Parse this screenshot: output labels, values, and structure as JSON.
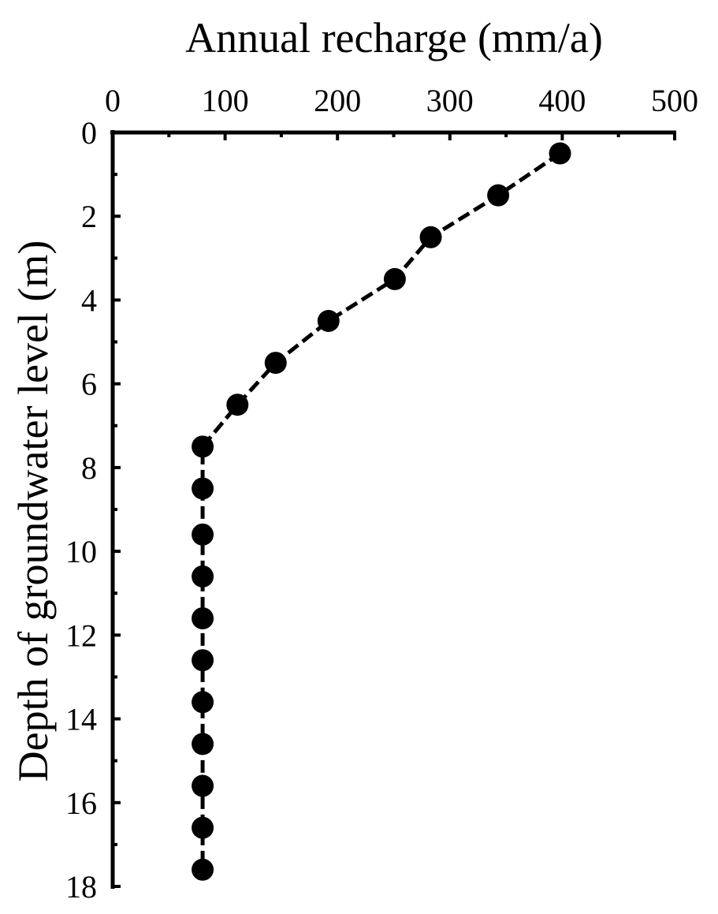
{
  "chart_data": {
    "type": "scatter",
    "xlabel": "Annual recharge (mm/a)",
    "ylabel": "Depth of groundwater level (m)",
    "xlim": [
      0,
      500
    ],
    "ylim": [
      0,
      18
    ],
    "x_axis_position": "top",
    "y_axis_inverted": true,
    "grid": false,
    "x_ticks": [
      0,
      100,
      200,
      300,
      400,
      500
    ],
    "y_ticks": [
      0,
      2,
      4,
      6,
      8,
      10,
      12,
      14,
      16,
      18
    ],
    "x_tick_labels": [
      "0",
      "100",
      "200",
      "300",
      "400",
      "500"
    ],
    "y_tick_labels": [
      "0",
      "2",
      "4",
      "6",
      "8",
      "10",
      "12",
      "14",
      "16",
      "18"
    ],
    "x_minor_step": 50,
    "y_minor_step": 1,
    "line_style": "dashed",
    "marker": "filled-circle",
    "color": "#000000",
    "series": [
      {
        "points": [
          {
            "x": 398,
            "y": 0.5
          },
          {
            "x": 343,
            "y": 1.5
          },
          {
            "x": 283,
            "y": 2.5
          },
          {
            "x": 251,
            "y": 3.5
          },
          {
            "x": 192,
            "y": 4.5
          },
          {
            "x": 145,
            "y": 5.5
          },
          {
            "x": 111,
            "y": 6.5
          },
          {
            "x": 80,
            "y": 7.5
          },
          {
            "x": 80,
            "y": 8.5
          },
          {
            "x": 80,
            "y": 9.6
          },
          {
            "x": 80,
            "y": 10.6
          },
          {
            "x": 80,
            "y": 11.6
          },
          {
            "x": 80,
            "y": 12.6
          },
          {
            "x": 80,
            "y": 13.6
          },
          {
            "x": 80,
            "y": 14.6
          },
          {
            "x": 80,
            "y": 15.6
          },
          {
            "x": 80,
            "y": 16.6
          },
          {
            "x": 80,
            "y": 17.6
          }
        ]
      }
    ]
  }
}
